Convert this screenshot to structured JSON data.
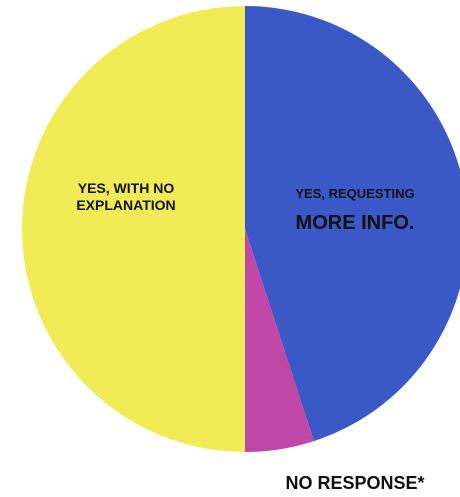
{
  "chart_data": {
    "type": "pie",
    "title": "",
    "start": "12 o'clock",
    "direction": "clockwise",
    "slices": [
      {
        "label_lines": [
          "YES, REQUESTING",
          "MORE INFO."
        ],
        "value": 45,
        "color": "#3a58c6"
      },
      {
        "label_lines": [
          "NO RESPONSE*"
        ],
        "value": 5,
        "color": "#bf47a6"
      },
      {
        "label_lines": [
          "YES, WITH NO",
          "EXPLANATION"
        ],
        "value": 50,
        "color": "#f1eb55"
      }
    ]
  }
}
